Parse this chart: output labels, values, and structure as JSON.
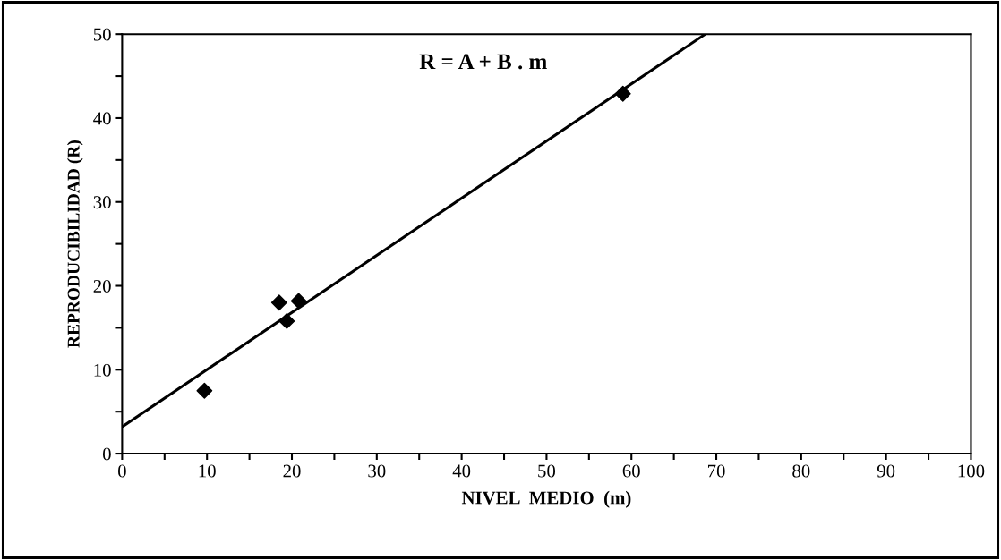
{
  "chart_data": {
    "type": "scatter",
    "xlabel": "NIVEL  MEDIO  (m)",
    "ylabel": "REPRODUCIBILIDAD (R)",
    "annotations": [
      "R = A + B . m"
    ],
    "marker": "diamond",
    "grid": false,
    "legend": false,
    "series": [
      {
        "color": "#000000",
        "x": [
          9.7,
          18.5,
          19.4,
          20.8,
          59.0
        ],
        "values": [
          7.5,
          18.0,
          15.8,
          18.2,
          42.9
        ]
      },
      {
        "type": "line",
        "color": "#000000",
        "marker": "none",
        "x": [
          0,
          68.7
        ],
        "values": [
          3.2,
          50
        ]
      }
    ],
    "xlim": [
      0,
      100
    ],
    "ylim": [
      0,
      50
    ],
    "xticks": [
      0,
      {
        "value": 5,
        "label": null
      },
      10,
      {
        "value": 15,
        "label": null
      },
      20,
      {
        "value": 25,
        "label": null
      },
      30,
      {
        "value": 35,
        "label": null
      },
      40,
      {
        "value": 45,
        "label": null
      },
      50,
      {
        "value": 55,
        "label": null
      },
      60,
      {
        "value": 65,
        "label": null
      },
      70,
      {
        "value": 75,
        "label": null
      },
      80,
      {
        "value": 85,
        "label": null
      },
      90,
      {
        "value": 95,
        "label": null
      },
      100
    ],
    "yticks": [
      0,
      {
        "value": 5,
        "label": null
      },
      10,
      {
        "value": 15,
        "label": null
      },
      20,
      {
        "value": 25,
        "label": null
      },
      30,
      {
        "value": 35,
        "label": null
      },
      40,
      {
        "value": 45,
        "label": null
      },
      50
    ]
  }
}
